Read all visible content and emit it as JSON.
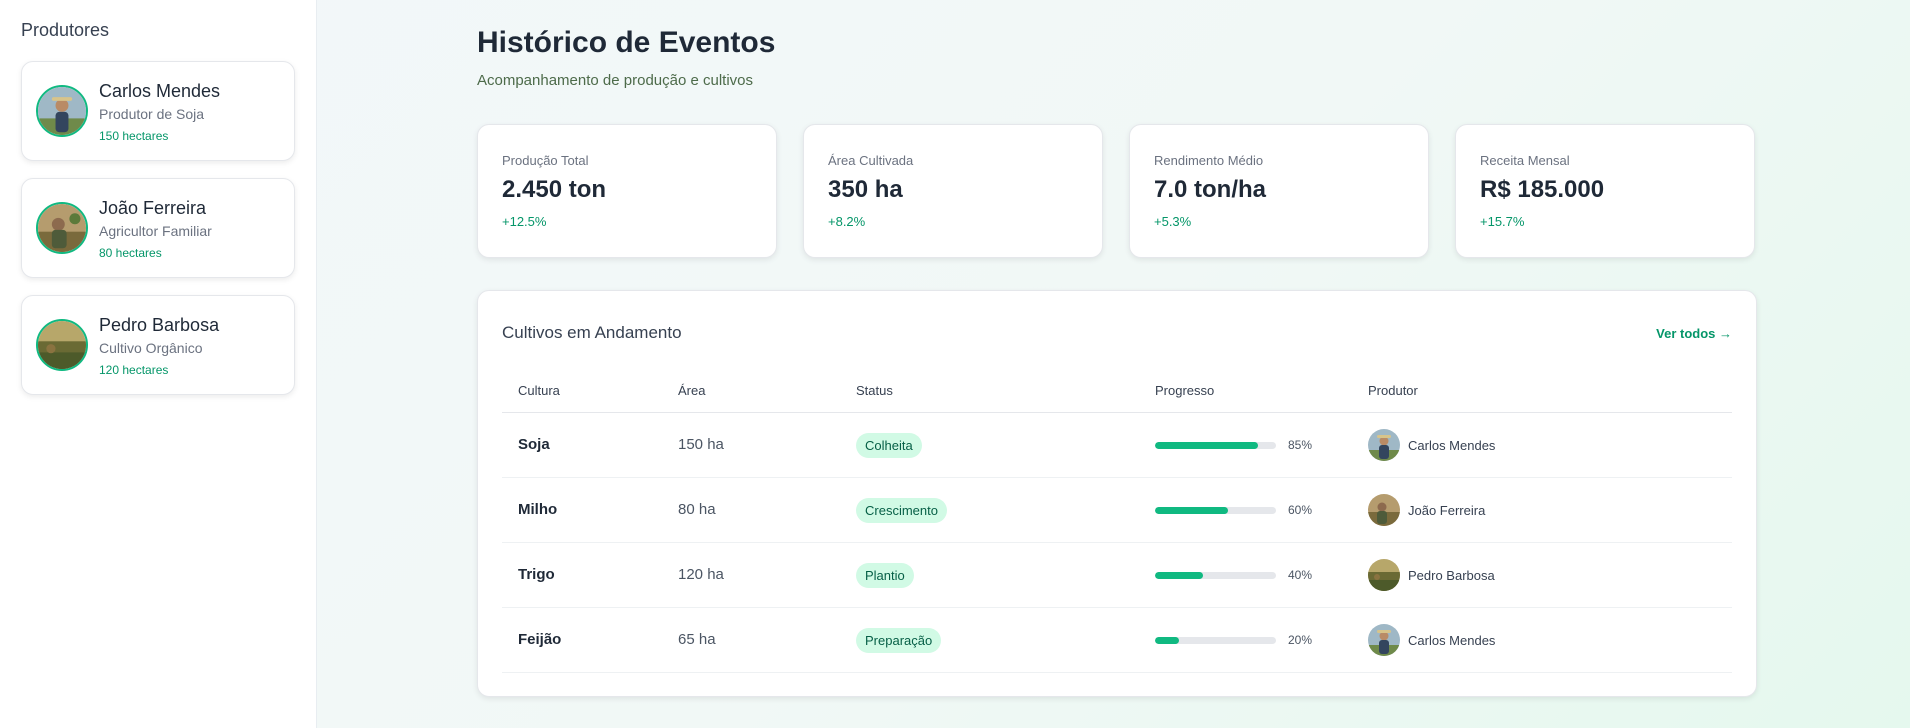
{
  "sidebar": {
    "title": "Produtores",
    "producers": [
      {
        "name": "Carlos Mendes",
        "role": "Produtor de Soja",
        "area": "150 hectares"
      },
      {
        "name": "João Ferreira",
        "role": "Agricultor Familiar",
        "area": "80 hectares"
      },
      {
        "name": "Pedro Barbosa",
        "role": "Cultivo Orgânico",
        "area": "120 hectares"
      }
    ]
  },
  "header": {
    "title": "Histórico de Eventos",
    "subtitle": "Acompanhamento de produção e cultivos"
  },
  "stats": [
    {
      "label": "Produção Total",
      "value": "2.450 ton",
      "change": "+12.5%"
    },
    {
      "label": "Área Cultivada",
      "value": "350 ha",
      "change": "+8.2%"
    },
    {
      "label": "Rendimento Médio",
      "value": "7.0 ton/ha",
      "change": "+5.3%"
    },
    {
      "label": "Receita Mensal",
      "value": "R$ 185.000",
      "change": "+15.7%"
    }
  ],
  "crops_table": {
    "title": "Cultivos em Andamento",
    "view_all": "Ver todos →",
    "columns": [
      "Cultura",
      "Área",
      "Status",
      "Progresso",
      "Produtor"
    ],
    "rows": [
      {
        "crop": "Soja",
        "area": "150 ha",
        "status": "Colheita",
        "progress": 85,
        "progress_label": "85%",
        "producer": "Carlos Mendes"
      },
      {
        "crop": "Milho",
        "area": "80 ha",
        "status": "Crescimento",
        "progress": 60,
        "progress_label": "60%",
        "producer": "João Ferreira"
      },
      {
        "crop": "Trigo",
        "area": "120 ha",
        "status": "Plantio",
        "progress": 40,
        "progress_label": "40%",
        "producer": "Pedro Barbosa"
      },
      {
        "crop": "Feijão",
        "area": "65 ha",
        "status": "Preparação",
        "progress": 20,
        "progress_label": "20%",
        "producer": "Carlos Mendes"
      }
    ]
  },
  "colors": {
    "accent": "#10b981",
    "accent_text": "#059669",
    "badge_bg": "#d1fae5",
    "badge_text": "#065f46"
  }
}
